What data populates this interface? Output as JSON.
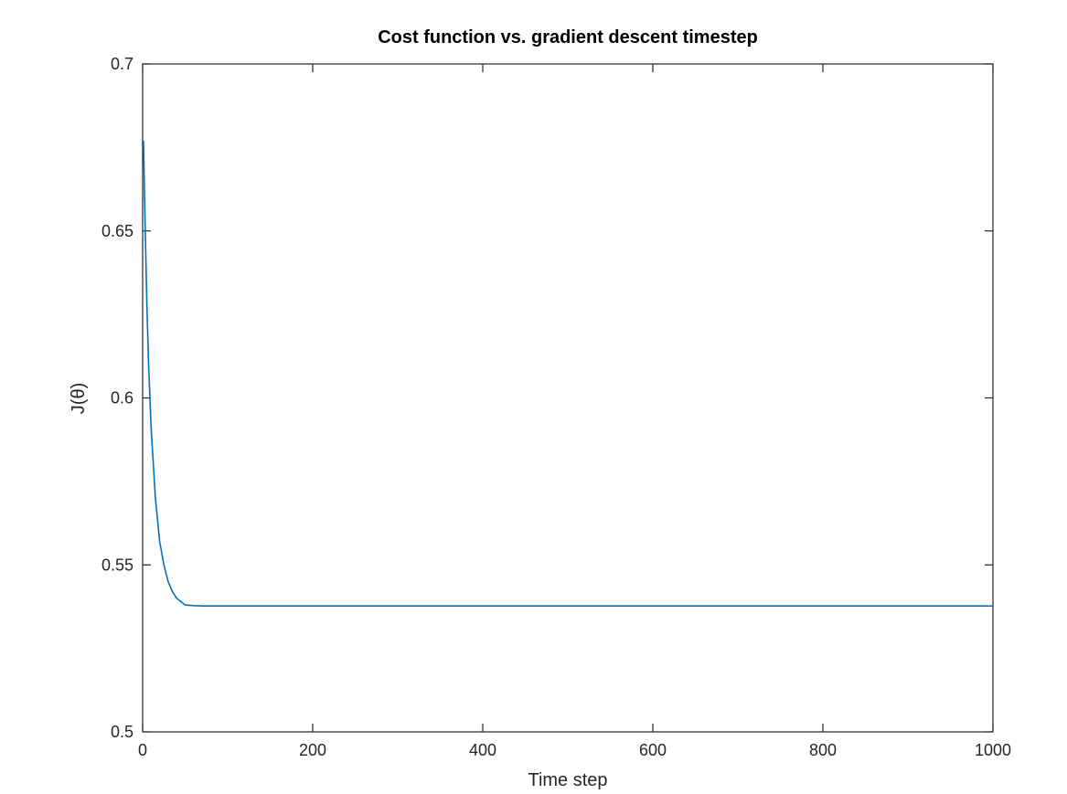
{
  "chart_data": {
    "type": "line",
    "title": "Cost function vs. gradient descent timestep",
    "xlabel": "Time step",
    "ylabel": "J(θ)",
    "xlim": [
      0,
      1000
    ],
    "ylim": [
      0.5,
      0.7
    ],
    "xticks": [
      0,
      200,
      400,
      600,
      800,
      1000
    ],
    "xtick_labels": [
      "0",
      "200",
      "400",
      "600",
      "800",
      "1000"
    ],
    "yticks": [
      0.5,
      0.55,
      0.6,
      0.65,
      0.7
    ],
    "ytick_labels": [
      "0.5",
      "0.55",
      "0.6",
      "0.65",
      "0.7"
    ],
    "grid": false,
    "legend": "none",
    "series": [
      {
        "color": "#0072bd",
        "x": [
          1,
          3,
          5,
          7,
          10,
          15,
          20,
          25,
          30,
          35,
          40,
          45,
          50,
          60,
          70,
          100,
          200,
          300,
          400,
          500,
          600,
          700,
          800,
          900,
          1000
        ],
        "y": [
          0.677,
          0.651,
          0.628,
          0.61,
          0.591,
          0.57,
          0.557,
          0.55,
          0.545,
          0.542,
          0.54,
          0.539,
          0.538,
          0.5378,
          0.5377,
          0.5377,
          0.5377,
          0.5377,
          0.5377,
          0.5377,
          0.5377,
          0.5377,
          0.5377,
          0.5377,
          0.5377
        ]
      }
    ]
  }
}
